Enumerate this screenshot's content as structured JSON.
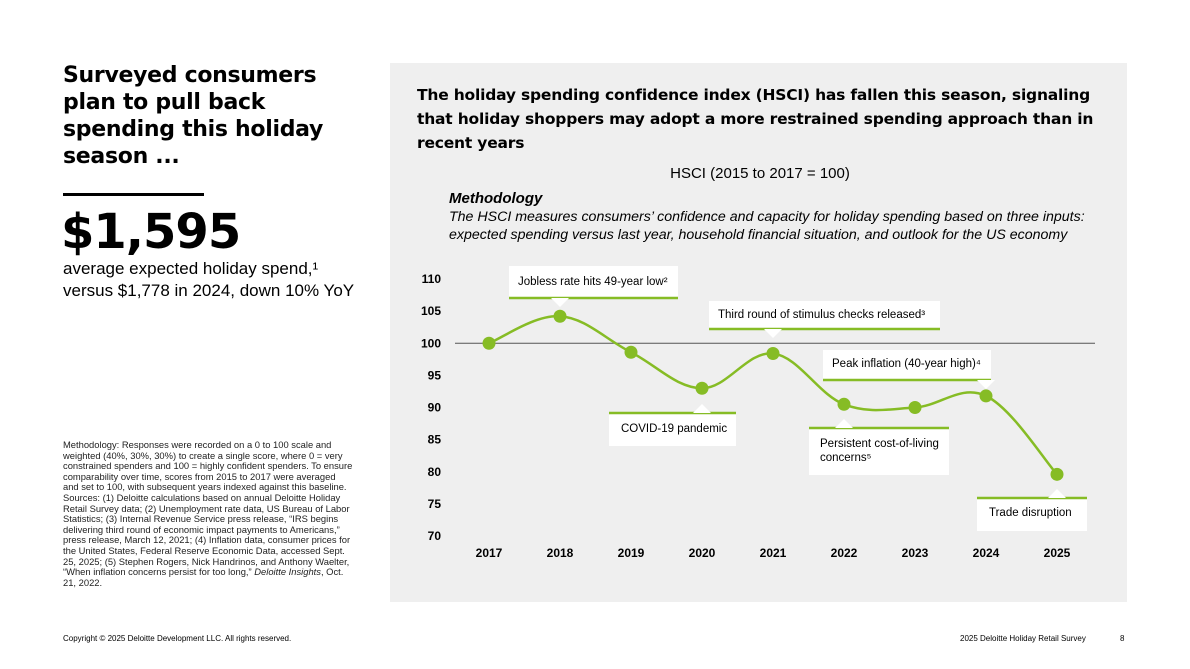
{
  "left": {
    "headline": "Surveyed consumers plan to pull back spending this holiday season ...",
    "big_number": "$1,595",
    "subtitle_line1": "average expected holiday spend,¹",
    "subtitle_line2": "versus $1,778 in 2024, down 10% YoY",
    "footnote_main": "Methodology: Responses were recorded on a 0 to 100 scale and weighted (40%, 30%, 30%) to create a single score, where 0 = very constrained spenders and 100 = highly confident spenders. To ensure comparability over time, scores from 2015 to 2017 were averaged and set to 100, with subsequent years indexed against this baseline. Sources: (1) Deloitte calculations based on annual Deloitte Holiday Retail Survey data; (2) Unemployment rate data, US Bureau of Labor Statistics; (3) Internal Revenue Service press release, “IRS begins delivering third round of economic impact payments to Americans,” press release, March 12, 2021; (4) Inflation data, consumer prices for the United States, Federal Reserve Economic Data, accessed Sept. 25, 2025; (5) Stephen Rogers, Nick Handrinos, and Anthony Waelter, “When inflation concerns persist for too long,”",
    "footnote_source": "Deloitte Insights",
    "footnote_end": ", Oct. 21, 2022."
  },
  "panel": {
    "title": "The holiday spending confidence index (HSCI) has fallen this season, signaling that holiday shoppers may adopt a more restrained spending approach than in recent years",
    "methodology_heading": "Methodology",
    "methodology_text": "The HSCI measures consumers’ confidence and capacity for holiday spending based on three inputs: expected spending versus last year, household financial situation, and outlook for the US economy"
  },
  "chart_data": {
    "type": "line",
    "title": "HSCI (2015 to 2017 = 100)",
    "categories": [
      "2017",
      "2018",
      "2019",
      "2020",
      "2021",
      "2022",
      "2023",
      "2024",
      "2025"
    ],
    "series": [
      {
        "name": "HSCI",
        "values": [
          100,
          104.2,
          98.6,
          93,
          98.4,
          90.5,
          90,
          91.8,
          79.6
        ]
      }
    ],
    "ylim": [
      70,
      110
    ],
    "yticks": [
      70,
      75,
      80,
      85,
      90,
      95,
      100,
      105,
      110
    ],
    "reference_line": 100,
    "annotations": [
      {
        "year": "2018",
        "lines": [
          "Jobless rate hits 49-year low²"
        ]
      },
      {
        "year": "2021",
        "lines": [
          "Third round of stimulus checks released³"
        ]
      },
      {
        "year": "2024",
        "lines": [
          "Peak inflation (40-year high)⁴"
        ]
      },
      {
        "year": "2020",
        "lines": [
          "COVID-19 pandemic"
        ]
      },
      {
        "year": "2022",
        "lines": [
          "Persistent cost-of-living",
          "concerns⁵"
        ]
      },
      {
        "year": "2025",
        "lines": [
          "Trade disruption"
        ]
      }
    ],
    "colors": {
      "line": "#86bc25",
      "point": "#86bc25",
      "reference": "#555555"
    }
  },
  "footer": {
    "copyright": "Copyright © 2025 Deloitte Development LLC. All rights reserved.",
    "report": "2025 Deloitte Holiday Retail Survey",
    "page": "8"
  }
}
